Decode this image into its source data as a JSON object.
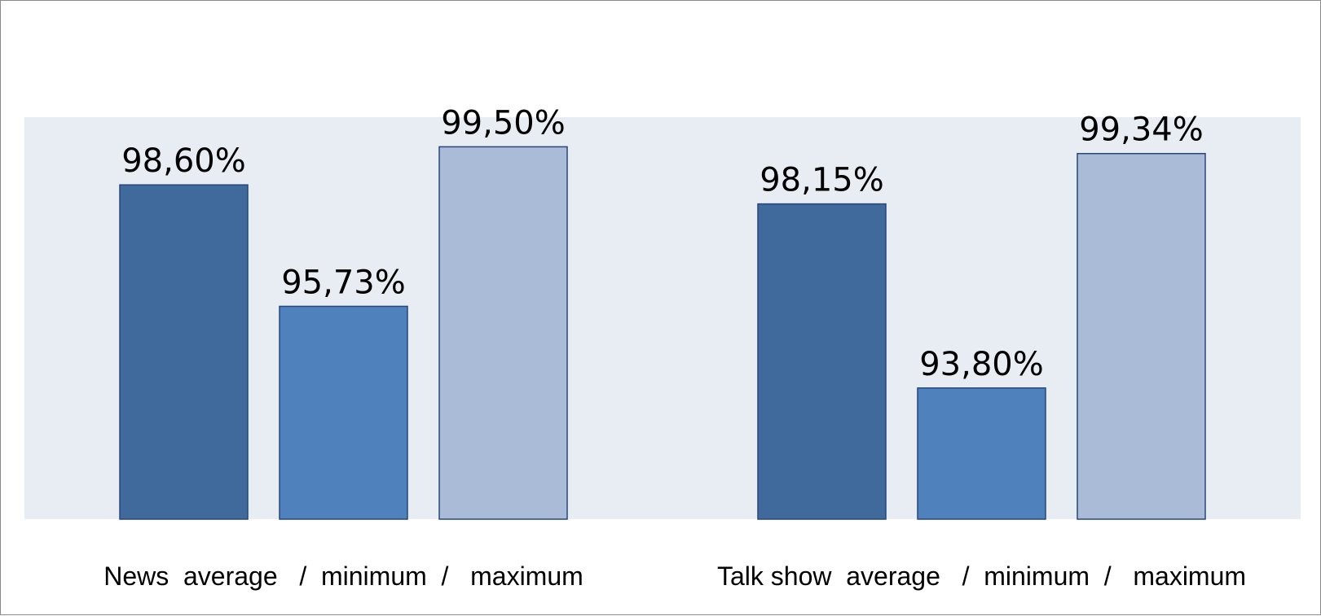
{
  "chart_data": {
    "type": "bar",
    "categories": [
      "News  average   /  minimum  /   maximum",
      "Talk show  average   /  minimum  /   maximum"
    ],
    "groups": [
      {
        "values": [
          98.6,
          95.73,
          99.5
        ],
        "labels": [
          "98,60%",
          "95,73%",
          "99,50%"
        ]
      },
      {
        "values": [
          98.15,
          93.8,
          99.34
        ],
        "labels": [
          "98,15%",
          "93,80%",
          "99,34%"
        ]
      }
    ],
    "bar_colors": [
      "#406a9b",
      "#4f81bd",
      "#aabbd8"
    ],
    "bar_edge_color": "#27477a",
    "plot_background": "#e8edf4",
    "ylim": [
      90.7,
      100.2
    ],
    "grid": false,
    "legend": "none"
  }
}
